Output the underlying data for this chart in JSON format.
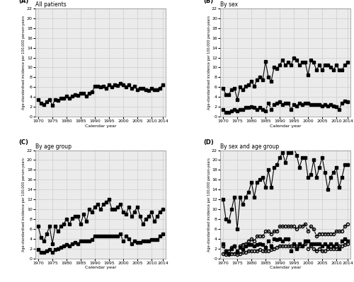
{
  "years": [
    1970,
    1971,
    1972,
    1973,
    1974,
    1975,
    1976,
    1977,
    1978,
    1979,
    1980,
    1981,
    1982,
    1983,
    1984,
    1985,
    1986,
    1987,
    1988,
    1989,
    1990,
    1991,
    1992,
    1993,
    1994,
    1995,
    1996,
    1997,
    1998,
    1999,
    2000,
    2001,
    2002,
    2003,
    2004,
    2005,
    2006,
    2007,
    2008,
    2009,
    2010,
    2011,
    2012,
    2013,
    2014
  ],
  "total": [
    3.5,
    2.7,
    2.5,
    3.0,
    3.5,
    2.3,
    3.5,
    3.3,
    3.7,
    3.8,
    4.2,
    3.8,
    4.2,
    4.5,
    4.3,
    4.8,
    4.7,
    4.2,
    4.7,
    5.0,
    6.2,
    6.2,
    6.0,
    6.2,
    5.8,
    6.5,
    6.0,
    6.4,
    6.3,
    6.8,
    6.5,
    6.0,
    6.5,
    5.7,
    6.2,
    5.5,
    5.8,
    5.7,
    5.5,
    5.3,
    5.7,
    5.5,
    5.5,
    5.8,
    6.5
  ],
  "men": [
    5.8,
    4.5,
    4.5,
    5.5,
    5.8,
    3.5,
    6.0,
    5.5,
    6.2,
    6.5,
    7.2,
    6.2,
    7.5,
    8.0,
    7.5,
    11.2,
    8.0,
    7.2,
    10.0,
    9.8,
    10.5,
    11.5,
    10.5,
    11.0,
    10.5,
    12.0,
    11.5,
    10.5,
    11.0,
    11.0,
    8.5,
    11.5,
    11.0,
    9.5,
    10.5,
    9.5,
    10.5,
    10.5,
    10.0,
    9.5,
    10.5,
    9.5,
    9.5,
    10.5,
    11.0
  ],
  "women": [
    1.5,
    0.8,
    0.8,
    1.2,
    1.5,
    1.2,
    1.5,
    1.5,
    1.8,
    1.8,
    2.0,
    1.8,
    1.5,
    1.8,
    1.5,
    1.2,
    2.8,
    1.5,
    2.5,
    2.8,
    3.0,
    2.5,
    2.8,
    2.8,
    1.5,
    2.5,
    2.2,
    2.8,
    2.5,
    2.8,
    2.8,
    2.5,
    2.5,
    2.5,
    2.5,
    2.2,
    2.5,
    2.2,
    2.5,
    2.2,
    2.0,
    1.5,
    2.8,
    3.2,
    3.0
  ],
  "age_50_69": [
    1.8,
    1.2,
    1.2,
    1.5,
    1.8,
    1.2,
    1.8,
    2.0,
    2.2,
    2.5,
    2.8,
    2.5,
    3.0,
    3.2,
    3.0,
    3.5,
    3.5,
    3.5,
    3.5,
    3.8,
    4.5,
    4.5,
    4.5,
    4.5,
    4.5,
    4.5,
    4.5,
    4.5,
    4.5,
    5.0,
    3.5,
    4.5,
    4.0,
    3.0,
    3.5,
    3.2,
    3.2,
    3.5,
    3.5,
    3.5,
    3.8,
    3.8,
    3.8,
    4.5,
    5.0
  ],
  "age_ge70": [
    6.5,
    4.2,
    3.5,
    5.0,
    6.5,
    3.0,
    6.5,
    5.5,
    6.5,
    7.0,
    8.0,
    7.0,
    8.2,
    8.5,
    8.5,
    7.0,
    9.0,
    7.5,
    10.0,
    9.5,
    10.5,
    11.0,
    10.0,
    11.0,
    11.5,
    12.0,
    10.0,
    10.0,
    10.5,
    11.0,
    9.5,
    9.0,
    10.5,
    8.5,
    9.5,
    10.5,
    8.5,
    7.0,
    8.0,
    8.5,
    9.5,
    7.5,
    8.5,
    9.5,
    10.0
  ],
  "men_50_69": [
    2.5,
    1.5,
    1.5,
    2.2,
    2.5,
    1.5,
    2.5,
    2.8,
    3.0,
    3.5,
    4.0,
    3.5,
    4.5,
    4.5,
    4.5,
    5.5,
    5.5,
    5.0,
    5.5,
    5.5,
    6.5,
    6.5,
    6.5,
    6.5,
    6.5,
    6.5,
    6.0,
    6.5,
    6.5,
    7.0,
    5.5,
    6.5,
    6.0,
    4.5,
    5.0,
    5.0,
    5.0,
    5.0,
    5.0,
    5.0,
    5.5,
    5.5,
    5.5,
    6.5,
    7.0
  ],
  "men_ge70": [
    12.0,
    8.0,
    7.5,
    10.0,
    12.5,
    6.0,
    12.5,
    11.0,
    12.5,
    13.5,
    15.5,
    12.5,
    15.5,
    16.0,
    16.5,
    14.5,
    18.0,
    14.5,
    18.5,
    19.0,
    20.5,
    21.5,
    19.5,
    21.5,
    21.5,
    22.5,
    21.0,
    18.5,
    20.5,
    20.5,
    16.5,
    17.0,
    20.0,
    16.5,
    18.5,
    20.5,
    17.5,
    14.0,
    16.5,
    17.5,
    18.5,
    14.5,
    16.5,
    19.0,
    19.0
  ],
  "women_50_69": [
    1.0,
    0.8,
    0.8,
    1.0,
    1.0,
    0.8,
    1.0,
    1.2,
    1.2,
    1.5,
    1.5,
    1.5,
    1.5,
    1.8,
    1.5,
    1.5,
    1.5,
    1.8,
    2.0,
    2.2,
    2.5,
    2.5,
    2.5,
    2.5,
    2.5,
    2.5,
    2.5,
    2.5,
    2.5,
    3.0,
    2.0,
    2.5,
    2.0,
    1.5,
    2.0,
    1.5,
    1.5,
    2.0,
    2.0,
    2.0,
    2.0,
    2.5,
    2.5,
    2.8,
    3.0
  ],
  "women_ge70": [
    3.0,
    1.5,
    1.0,
    2.0,
    2.5,
    1.2,
    2.2,
    2.0,
    2.5,
    2.8,
    2.8,
    2.5,
    2.8,
    3.0,
    2.8,
    2.2,
    3.5,
    2.5,
    4.0,
    3.8,
    4.0,
    3.5,
    4.0,
    4.0,
    1.5,
    3.0,
    2.0,
    3.0,
    2.5,
    3.5,
    3.5,
    3.0,
    3.0,
    3.0,
    3.0,
    2.5,
    3.0,
    2.5,
    3.0,
    2.5,
    3.0,
    2.0,
    3.5,
    4.0,
    3.5
  ],
  "ylabel": "Age-standardised incidence per 100,000 person-years",
  "xlabel": "Calendar year",
  "ylim": [
    0,
    22
  ],
  "yticks": [
    0,
    2,
    4,
    6,
    8,
    10,
    12,
    14,
    16,
    18,
    20,
    22
  ],
  "xticks": [
    1970,
    1975,
    1980,
    1985,
    1990,
    1995,
    2000,
    2005,
    2010,
    2014
  ],
  "color_solid": "#000000",
  "markersize": 3,
  "linewidth": 0.8,
  "grid_color": "#cccccc",
  "bg_color": "#ebebeb"
}
